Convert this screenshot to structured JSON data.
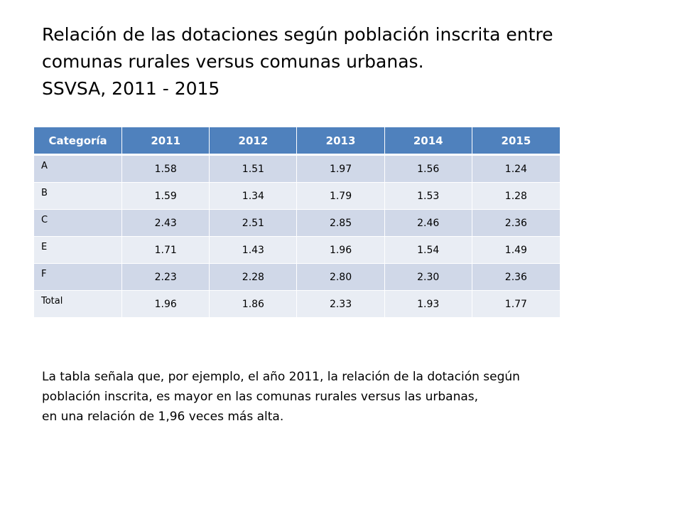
{
  "title": {
    "line1": "Relación de las dotaciones según población inscrita entre",
    "line2": "comunas rurales versus comunas urbanas.",
    "line3": "SSVSA, 2011 - 2015"
  },
  "table": {
    "headers": [
      "Categoría",
      "2011",
      "2012",
      "2013",
      "2014",
      "2015"
    ],
    "rows": [
      {
        "category": "A",
        "values": [
          "1.58",
          "1.51",
          "1.97",
          "1.56",
          "1.24"
        ]
      },
      {
        "category": "B",
        "values": [
          "1.59",
          "1.34",
          "1.79",
          "1.53",
          "1.28"
        ]
      },
      {
        "category": "C",
        "values": [
          "2.43",
          "2.51",
          "2.85",
          "2.46",
          "2.36"
        ]
      },
      {
        "category": "E",
        "values": [
          "1.71",
          "1.43",
          "1.96",
          "1.54",
          "1.49"
        ]
      },
      {
        "category": "F",
        "values": [
          "2.23",
          "2.28",
          "2.80",
          "2.30",
          "2.36"
        ]
      },
      {
        "category": "Total",
        "values": [
          "1.96",
          "1.86",
          "2.33",
          "1.93",
          "1.77"
        ]
      }
    ]
  },
  "note": {
    "line1": "La tabla señala que, por ejemplo, el año 2011, la relación de la dotación según",
    "line2": "población inscrita, es mayor en las comunas rurales versus las urbanas,",
    "line3": "en una relación de 1,96 veces más alta."
  },
  "colors": {
    "header_bg": "#4f81bd",
    "row_odd_bg": "#d0d8e8",
    "row_even_bg": "#e9edf4"
  }
}
